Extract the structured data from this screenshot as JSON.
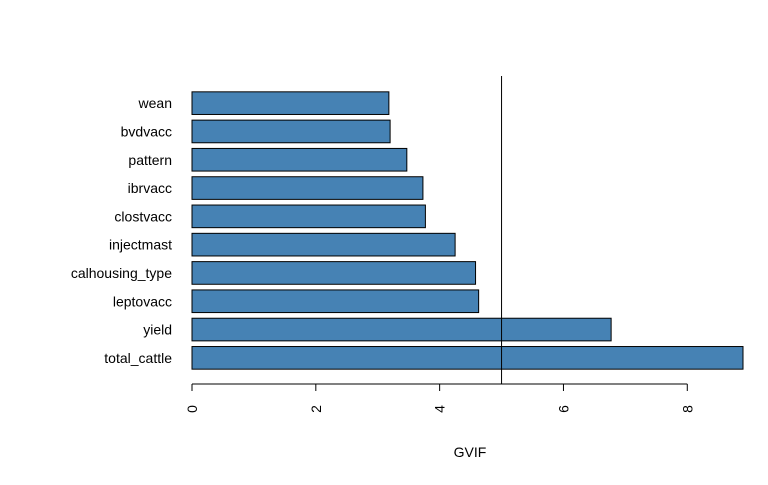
{
  "chart_data": {
    "type": "bar",
    "orientation": "horizontal",
    "categories": [
      "wean",
      "bvdvacc",
      "pattern",
      "ibrvacc",
      "clostvacc",
      "injectmast",
      "calhousing_type",
      "leptovacc",
      "yield",
      "total_cattle"
    ],
    "values": [
      3.18,
      3.2,
      3.47,
      3.73,
      3.77,
      4.25,
      4.58,
      4.63,
      6.77,
      8.9
    ],
    "xlabel": "GVIF",
    "ylabel": "",
    "title": "",
    "xlim": [
      0,
      8.9
    ],
    "xticks": [
      "0",
      "2",
      "4",
      "6",
      "8"
    ],
    "reference_line": 5,
    "grid": false,
    "bar_color": "#4682B4",
    "bar_edge_color": "#000000"
  }
}
